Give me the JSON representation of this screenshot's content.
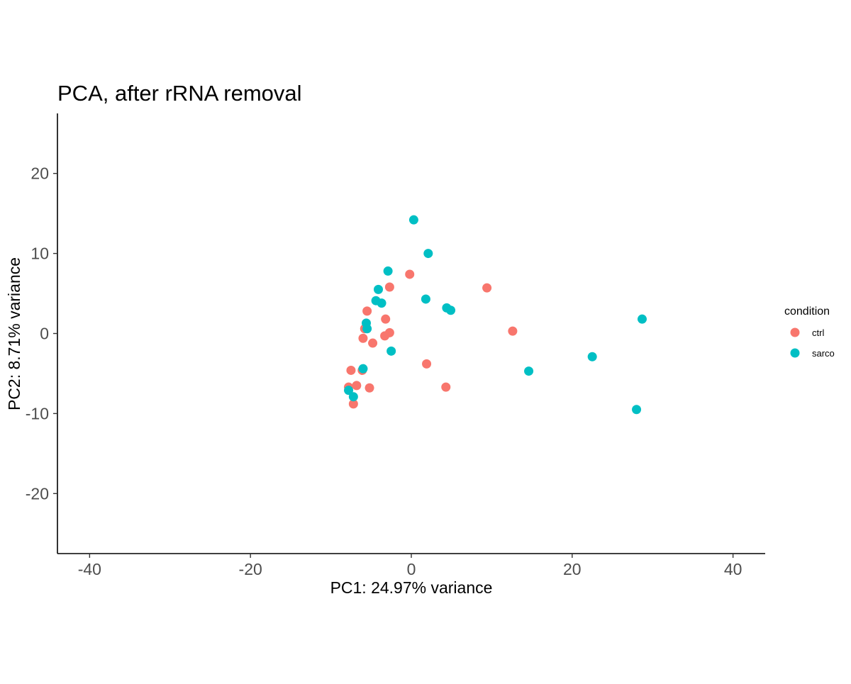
{
  "chart_data": {
    "type": "scatter",
    "title": "PCA, after rRNA removal",
    "xlabel": "PC1: 24.97% variance",
    "ylabel": "PC2: 8.71% variance",
    "xlim": [
      -44,
      44
    ],
    "ylim": [
      -27.5,
      27.5
    ],
    "xticks": [
      -40,
      -20,
      0,
      20,
      40
    ],
    "yticks": [
      -20,
      -10,
      0,
      10,
      20
    ],
    "grid": false,
    "legend": {
      "title": "condition",
      "position": "right"
    },
    "series": [
      {
        "name": "ctrl",
        "color": "#F8766D",
        "points": [
          [
            -0.2,
            7.4
          ],
          [
            9.4,
            5.7
          ],
          [
            -2.7,
            5.8
          ],
          [
            -5.5,
            2.8
          ],
          [
            -3.2,
            1.8
          ],
          [
            -5.8,
            0.6
          ],
          [
            -2.7,
            0.1
          ],
          [
            -3.3,
            -0.3
          ],
          [
            -6.0,
            -0.6
          ],
          [
            -4.8,
            -1.2
          ],
          [
            12.6,
            0.3
          ],
          [
            1.9,
            -3.8
          ],
          [
            -7.5,
            -4.6
          ],
          [
            -6.1,
            -4.6
          ],
          [
            -6.8,
            -6.5
          ],
          [
            -7.8,
            -6.7
          ],
          [
            -5.2,
            -6.8
          ],
          [
            4.3,
            -6.7
          ],
          [
            -7.2,
            -8.8
          ]
        ]
      },
      {
        "name": "sarco",
        "color": "#00BFC4",
        "points": [
          [
            0.3,
            14.2
          ],
          [
            2.1,
            10.0
          ],
          [
            -2.9,
            7.8
          ],
          [
            -4.1,
            5.5
          ],
          [
            -4.4,
            4.1
          ],
          [
            -3.7,
            3.8
          ],
          [
            1.8,
            4.3
          ],
          [
            4.4,
            3.2
          ],
          [
            4.9,
            2.9
          ],
          [
            -5.6,
            1.3
          ],
          [
            -5.5,
            0.6
          ],
          [
            28.7,
            1.8
          ],
          [
            -2.5,
            -2.2
          ],
          [
            22.5,
            -2.9
          ],
          [
            14.6,
            -4.7
          ],
          [
            -6.0,
            -4.4
          ],
          [
            -7.8,
            -7.1
          ],
          [
            -7.2,
            -7.9
          ],
          [
            28.0,
            -9.5
          ]
        ]
      }
    ]
  }
}
